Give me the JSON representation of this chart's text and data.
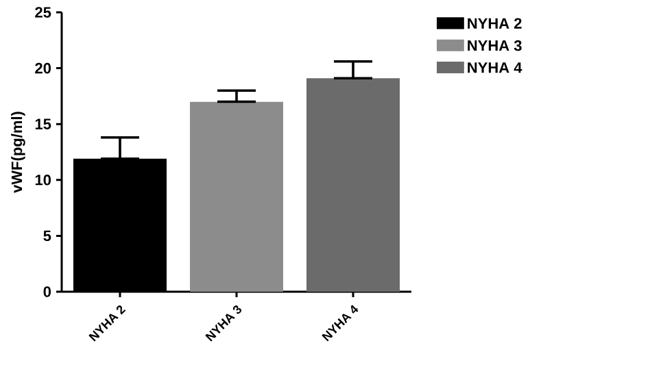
{
  "chart_data": {
    "type": "bar",
    "ylabel": "vWF(pg/ml)",
    "categories": [
      "NYHA 2",
      "NYHA 3",
      "NYHA 4"
    ],
    "series": [
      {
        "name": "NYHA 2",
        "color": "#000000",
        "values": [
          11.9,
          null,
          null
        ],
        "errors": [
          [
            11.9,
            13.8
          ],
          null,
          null
        ]
      },
      {
        "name": "NYHA 3",
        "color": "#8c8c8c",
        "values": [
          null,
          17.0,
          null
        ],
        "errors": [
          null,
          [
            17.0,
            18.0
          ],
          null
        ]
      },
      {
        "name": "NYHA 4",
        "color": "#6b6b6b",
        "values": [
          null,
          null,
          19.1
        ],
        "errors": [
          null,
          null,
          [
            19.1,
            20.6
          ]
        ]
      }
    ],
    "ylim": [
      0,
      25
    ],
    "yticks": [
      0,
      5,
      10,
      15,
      20,
      25
    ],
    "legend": "top right",
    "grid": false
  }
}
